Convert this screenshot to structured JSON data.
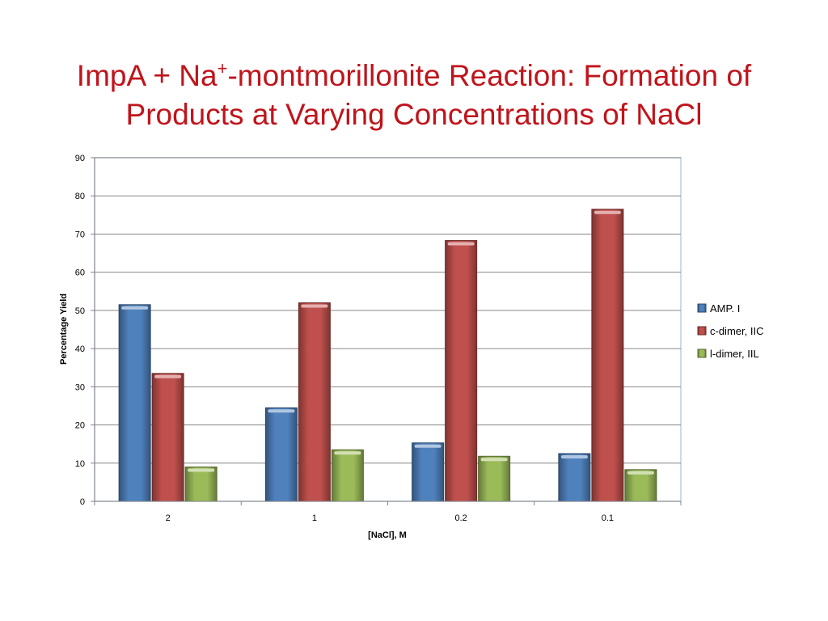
{
  "slide": {
    "title_part1": "ImpA + Na",
    "title_sup": "+",
    "title_part2": "-montmorillonite Reaction: Formation of",
    "title_line2": "Products at Varying Concentrations of NaCl"
  },
  "chart_data": {
    "type": "bar",
    "title": "ImpA + Na+-montmorillonite Reaction: Formation of Products at Varying Concentrations of NaCl",
    "xlabel": "[NaCl], M",
    "ylabel": "Percentage Yield",
    "categories": [
      "2",
      "1",
      "0.2",
      "0.1"
    ],
    "ylim": [
      0,
      90
    ],
    "yticks": [
      0,
      10,
      20,
      30,
      40,
      50,
      60,
      70,
      80,
      90
    ],
    "grid": true,
    "legend_position": "right",
    "series": [
      {
        "name": "AMP. I",
        "color": "#4f81bd",
        "values": [
          51.5,
          24.5,
          15.3,
          12.5
        ]
      },
      {
        "name": "c-dimer, IIC",
        "color": "#c0504d",
        "values": [
          33.5,
          52.0,
          68.3,
          76.5
        ]
      },
      {
        "name": "l-dimer, IIL",
        "color": "#9bbb59",
        "values": [
          9.0,
          13.5,
          11.8,
          8.3
        ]
      }
    ]
  }
}
